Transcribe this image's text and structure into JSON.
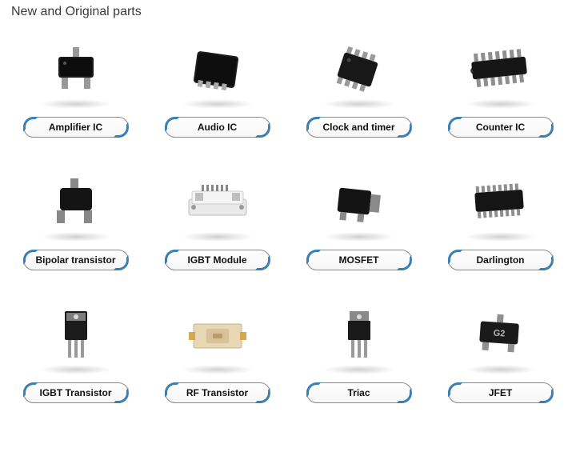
{
  "title": "New and Original parts",
  "colors": {
    "accent": "#3b7fb5",
    "pill_border": "#8a8a8a",
    "text": "#111111",
    "title_text": "#3a3a3a",
    "shadow": "rgba(0,0,0,0.18)"
  },
  "grid": {
    "columns": 4,
    "items": [
      {
        "label": "Amplifier IC",
        "icon": "sot23"
      },
      {
        "label": "Audio IC",
        "icon": "qfn"
      },
      {
        "label": "Clock and timer",
        "icon": "soic8-tilt"
      },
      {
        "label": "Counter IC",
        "icon": "dip14"
      },
      {
        "label": "Bipolar transistor",
        "icon": "sot23b"
      },
      {
        "label": "IGBT Module",
        "icon": "igbt-module"
      },
      {
        "label": "MOSFET",
        "icon": "dpak"
      },
      {
        "label": "Darlington",
        "icon": "soic16"
      },
      {
        "label": "IGBT Transistor",
        "icon": "to247"
      },
      {
        "label": "RF Transistor",
        "icon": "rf-flange"
      },
      {
        "label": "Triac",
        "icon": "to220"
      },
      {
        "label": "JFET",
        "icon": "sot23-marked"
      }
    ]
  }
}
